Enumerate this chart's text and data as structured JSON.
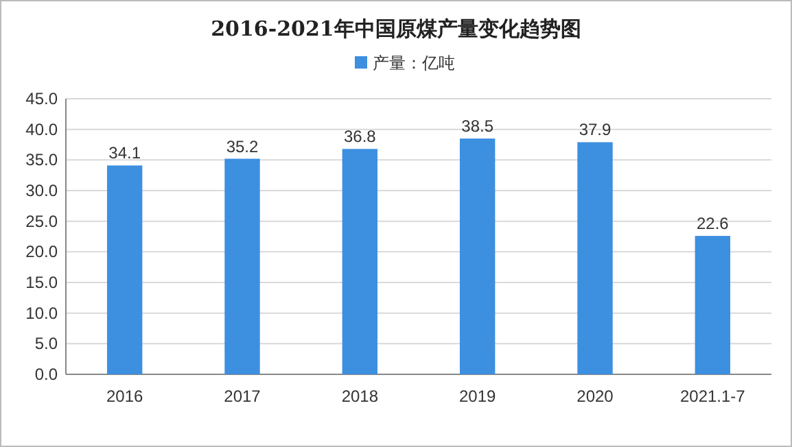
{
  "chart_data": {
    "type": "bar",
    "title": "2016-2021年中国原煤产量变化趋势图",
    "categories": [
      "2016",
      "2017",
      "2018",
      "2019",
      "2020",
      "2021.1-7"
    ],
    "series": [
      {
        "name": "产量：亿吨",
        "color": "#3d8fe0",
        "values": [
          34.1,
          35.2,
          36.8,
          38.5,
          37.9,
          22.6
        ]
      }
    ],
    "ylim": [
      0,
      45
    ],
    "yticks": [
      {
        "value": 0,
        "label": "0.0"
      },
      {
        "value": 5,
        "label": "5.0"
      },
      {
        "value": 10,
        "label": "10.0"
      },
      {
        "value": 15,
        "label": "15.0"
      },
      {
        "value": 20,
        "label": "20.0"
      },
      {
        "value": 25,
        "label": "25.0"
      },
      {
        "value": 30,
        "label": "30.0"
      },
      {
        "value": 35,
        "label": "35.0"
      },
      {
        "value": 40,
        "label": "40.0"
      },
      {
        "value": 45,
        "label": "45.0"
      }
    ],
    "grid": "y",
    "legend": "top",
    "data_labels": true
  }
}
